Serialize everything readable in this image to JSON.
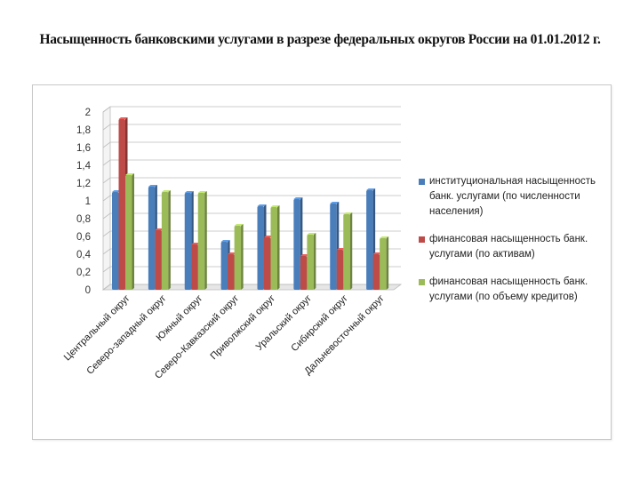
{
  "title": "Насыщенность банковскими услугами в разрезе федеральных округов России на 01.01.2012 г.",
  "colors": {
    "series": [
      "#4a7ebb",
      "#be4b48",
      "#9bbb59"
    ],
    "grid": "#bdbdbd"
  },
  "chart_data": {
    "type": "bar",
    "categories": [
      "Центральный  округ",
      "Северо-западный  округ",
      "Южный  округ",
      "Северо-Кавказский  округ",
      "Приволжский  округ",
      "Уральский округ",
      "Сибирский округ",
      "Дальневосточный округ"
    ],
    "series": [
      {
        "name": "институциональная насыщенность банк. услугами (по численности населения)",
        "values": [
          1.1,
          1.16,
          1.09,
          0.54,
          0.94,
          1.02,
          0.97,
          1.12
        ]
      },
      {
        "name": "финансовая насыщенность банк. услугами (по активам)",
        "values": [
          1.92,
          0.67,
          0.51,
          0.4,
          0.59,
          0.38,
          0.45,
          0.4
        ]
      },
      {
        "name": "финансовая насыщенность банк. услугами (по объему кредитов)",
        "values": [
          1.29,
          1.1,
          1.09,
          0.72,
          0.93,
          0.62,
          0.85,
          0.58
        ]
      }
    ],
    "yticks": [
      "0",
      "0,2",
      "0,4",
      "0,6",
      "0,8",
      "1",
      "1,2",
      "1,4",
      "1,6",
      "1,8",
      "2"
    ],
    "ylim": [
      0,
      2
    ],
    "grid": true,
    "legend_position": "right",
    "xlabel": "",
    "ylabel": ""
  }
}
